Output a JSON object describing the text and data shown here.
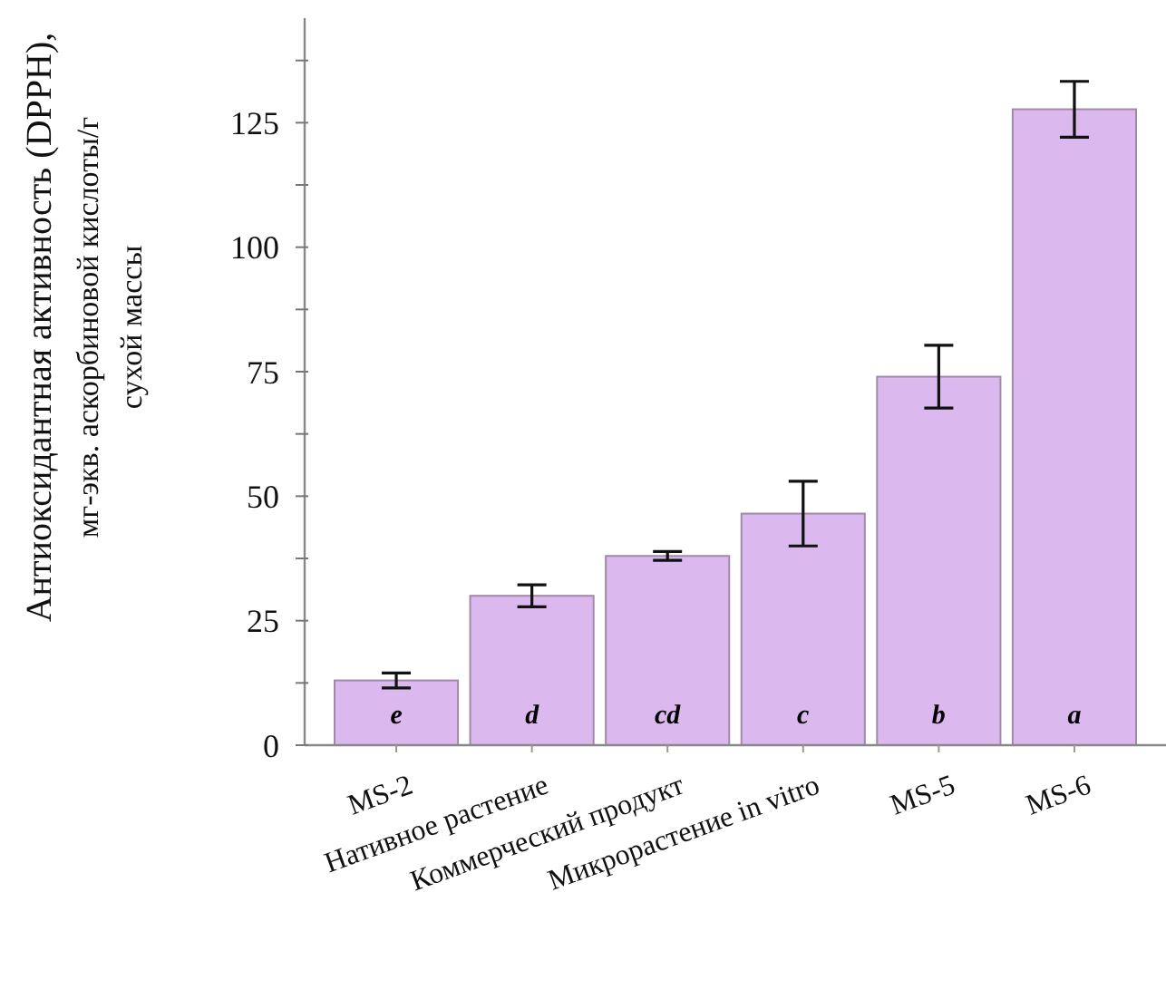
{
  "chart_data": {
    "type": "bar",
    "ylabel": "Антиоксидантная активность (DPPH),\nмг-экв. аскорбиновой кислоты/г\nсухой массы",
    "categories": [
      "MS-2",
      "Нативное растение",
      "Коммерческий продукт",
      "Микрорастение in vitro",
      "MS-5",
      "MS-6"
    ],
    "values": [
      13,
      30,
      38,
      46.5,
      74,
      127.7
    ],
    "errors": [
      1.5,
      2.2,
      0.9,
      6.5,
      6.3,
      5.6
    ],
    "color": "#dbb8ee",
    "ylim": [
      0,
      146
    ],
    "yticks": [
      0,
      {
        "value": 12.5,
        "label": null
      },
      25,
      {
        "value": 37.5,
        "label": null
      },
      50,
      {
        "value": 62.5,
        "label": null
      },
      75,
      {
        "value": 87.5,
        "label": null
      },
      100,
      {
        "value": 112.5,
        "label": null
      },
      125,
      {
        "value": 137.5,
        "label": null
      }
    ],
    "annotations": [
      "e",
      "d",
      "cd",
      "c",
      "b",
      "a"
    ],
    "grid": false
  }
}
